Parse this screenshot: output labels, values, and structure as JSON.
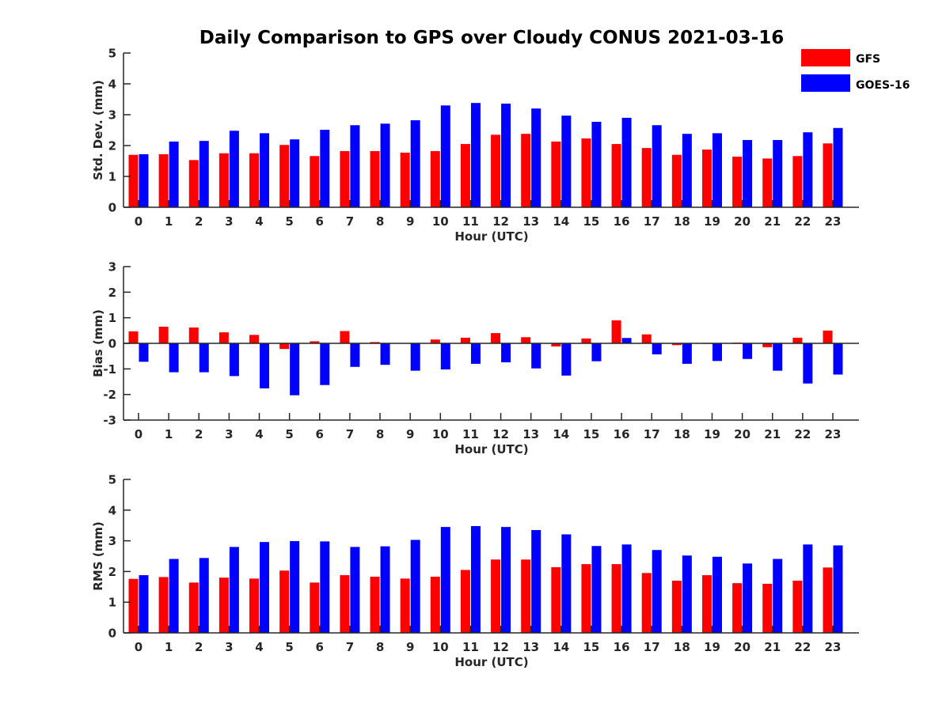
{
  "title": "Daily Comparison to GPS over Cloudy CONUS 2021-03-16",
  "legend": [
    {
      "name": "GFS",
      "color": "#ff0000"
    },
    {
      "name": "GOES-16",
      "color": "#0000ff"
    }
  ],
  "chart_data": [
    {
      "type": "bar",
      "ylabel": "Std. Dev. (mm)",
      "xlabel": "Hour (UTC)",
      "ylim": [
        0,
        5
      ],
      "yticks": [
        0,
        1,
        2,
        3,
        4,
        5
      ],
      "categories": [
        "0",
        "1",
        "2",
        "3",
        "4",
        "5",
        "6",
        "7",
        "8",
        "9",
        "10",
        "11",
        "12",
        "13",
        "14",
        "15",
        "16",
        "17",
        "18",
        "19",
        "20",
        "21",
        "22",
        "23"
      ],
      "series": [
        {
          "name": "GFS",
          "color": "#ff0000",
          "values": [
            1.7,
            1.72,
            1.53,
            1.75,
            1.75,
            2.02,
            1.66,
            1.82,
            1.82,
            1.77,
            1.82,
            2.05,
            2.35,
            2.38,
            2.13,
            2.23,
            2.05,
            1.92,
            1.7,
            1.87,
            1.64,
            1.58,
            1.66,
            2.07
          ]
        },
        {
          "name": "GOES-16",
          "color": "#0000ff",
          "values": [
            1.72,
            2.13,
            2.15,
            2.48,
            2.4,
            2.2,
            2.51,
            2.66,
            2.71,
            2.82,
            3.3,
            3.38,
            3.36,
            3.2,
            2.97,
            2.77,
            2.9,
            2.66,
            2.38,
            2.4,
            2.18,
            2.18,
            2.43,
            2.57
          ]
        }
      ]
    },
    {
      "type": "bar",
      "ylabel": "Bias (mm)",
      "xlabel": "Hour (UTC)",
      "ylim": [
        -3,
        3
      ],
      "yticks": [
        -3,
        -2,
        -1,
        0,
        1,
        2,
        3
      ],
      "categories": [
        "0",
        "1",
        "2",
        "3",
        "4",
        "5",
        "6",
        "7",
        "8",
        "9",
        "10",
        "11",
        "12",
        "13",
        "14",
        "15",
        "16",
        "17",
        "18",
        "19",
        "20",
        "21",
        "22",
        "23"
      ],
      "series": [
        {
          "name": "GFS",
          "color": "#ff0000",
          "values": [
            0.47,
            0.65,
            0.62,
            0.43,
            0.33,
            -0.22,
            0.08,
            0.48,
            0.05,
            0.0,
            0.15,
            0.22,
            0.4,
            0.24,
            -0.12,
            0.19,
            0.9,
            0.35,
            -0.07,
            -0.02,
            0.03,
            -0.15,
            0.22,
            0.5
          ]
        },
        {
          "name": "GOES-16",
          "color": "#0000ff",
          "values": [
            -0.72,
            -1.13,
            -1.13,
            -1.28,
            -1.76,
            -2.03,
            -1.63,
            -0.92,
            -0.84,
            -1.07,
            -1.02,
            -0.8,
            -0.74,
            -0.98,
            -1.26,
            -0.7,
            0.21,
            -0.43,
            -0.8,
            -0.69,
            -0.61,
            -1.07,
            -1.57,
            -1.22
          ]
        }
      ]
    },
    {
      "type": "bar",
      "ylabel": "RMS (mm)",
      "xlabel": "Hour (UTC)",
      "ylim": [
        0,
        5
      ],
      "yticks": [
        0,
        1,
        2,
        3,
        4,
        5
      ],
      "categories": [
        "0",
        "1",
        "2",
        "3",
        "4",
        "5",
        "6",
        "7",
        "8",
        "9",
        "10",
        "11",
        "12",
        "13",
        "14",
        "15",
        "16",
        "17",
        "18",
        "19",
        "20",
        "21",
        "22",
        "23"
      ],
      "series": [
        {
          "name": "GFS",
          "color": "#ff0000",
          "values": [
            1.76,
            1.82,
            1.64,
            1.8,
            1.77,
            2.03,
            1.64,
            1.88,
            1.83,
            1.77,
            1.83,
            2.05,
            2.39,
            2.39,
            2.14,
            2.24,
            2.24,
            1.95,
            1.7,
            1.88,
            1.62,
            1.6,
            1.7,
            2.13
          ]
        },
        {
          "name": "GOES-16",
          "color": "#0000ff",
          "values": [
            1.88,
            2.41,
            2.44,
            2.8,
            2.96,
            2.99,
            2.98,
            2.8,
            2.82,
            3.03,
            3.45,
            3.48,
            3.45,
            3.35,
            3.21,
            2.83,
            2.88,
            2.7,
            2.52,
            2.48,
            2.26,
            2.41,
            2.88,
            2.85
          ]
        }
      ]
    }
  ]
}
